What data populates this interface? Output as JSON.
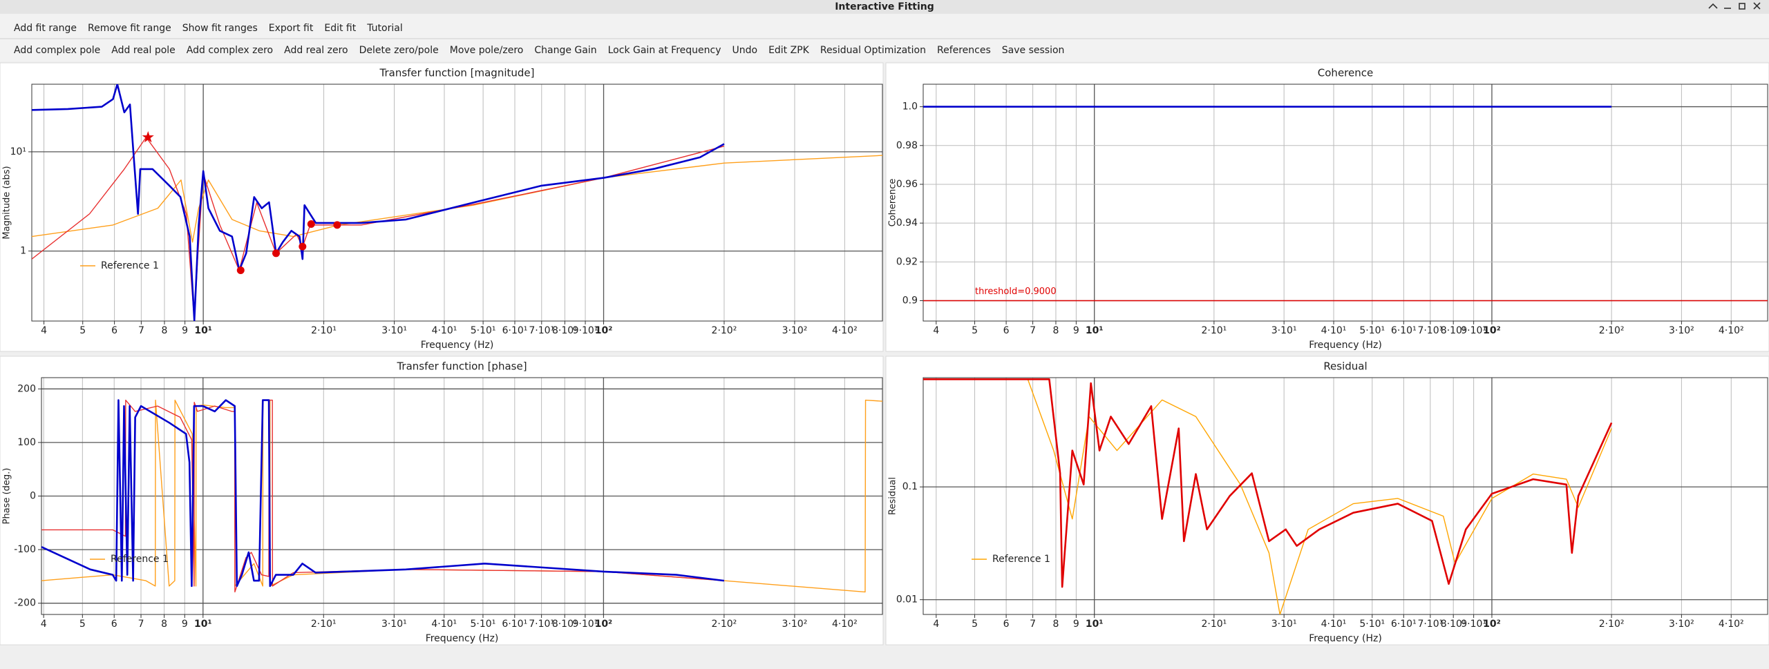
{
  "window": {
    "title": "Interactive Fitting"
  },
  "menu": [
    "Add fit range",
    "Remove fit range",
    "Show fit ranges",
    "Export fit",
    "Edit fit",
    "Tutorial"
  ],
  "toolbar": [
    "Add complex pole",
    "Add real pole",
    "Add complex zero",
    "Add real zero",
    "Delete zero/pole",
    "Move pole/zero",
    "Change Gain",
    "Lock Gain at Frequency",
    "Undo",
    "Edit ZPK",
    "Residual Optimization",
    "References",
    "Save session"
  ],
  "chart_data": [
    {
      "type": "line",
      "title": "Transfer function [magnitude]",
      "xlabel": "Frequency (Hz)",
      "ylabel": "Magnitude (abs)",
      "xscale": "log",
      "yscale": "log",
      "grid": true,
      "legend": "lower left",
      "xlim": [
        3.73,
        497
      ],
      "ylim": [
        0.197,
        48
      ],
      "xticks": [
        4,
        5,
        6,
        7,
        8,
        9,
        {
          "value": 10,
          "label": "10¹"
        },
        {
          "value": 20,
          "label": "2·10¹"
        },
        {
          "value": 30,
          "label": "3·10¹"
        },
        {
          "value": 40,
          "label": "4·10¹"
        },
        {
          "value": 50,
          "label": "5·10¹"
        },
        {
          "value": 60,
          "label": "6·10¹"
        },
        {
          "value": 70,
          "label": "7·10¹"
        },
        {
          "value": 80,
          "label": "8·10¹"
        },
        {
          "value": 90,
          "label": "9·10¹"
        },
        {
          "value": 100,
          "label": "10²"
        },
        {
          "value": 200,
          "label": "2·10²"
        },
        {
          "value": 300,
          "label": "3·10²"
        },
        {
          "value": 400,
          "label": "4·10²"
        }
      ],
      "yticks": [
        1,
        {
          "value": 10,
          "label": "10¹"
        }
      ],
      "series": [
        {
          "name": "Reference 1",
          "color": "#ff9f1a",
          "x": [
            3.73,
            5.95,
            7.7,
            8.8,
            9.4,
            9.74,
            10.3,
            11.8,
            13.8,
            16.8,
            21.8,
            47.3,
            100,
            200,
            497
          ],
          "values": [
            1.4,
            1.83,
            2.7,
            5.2,
            1.23,
            2.7,
            5.2,
            2.08,
            1.6,
            1.4,
            1.83,
            2.9,
            5.47,
            7.7,
            9.2
          ]
        },
        {
          "color": "#e83030",
          "x": [
            3.73,
            5.2,
            6.35,
            7.2,
            8.23,
            9.07,
            9.5,
            9.68,
            10,
            11,
            12.3,
            13.6,
            15.2,
            17.1,
            17.7,
            18.5,
            24.8,
            47.3,
            100,
            200
          ],
          "values": [
            0.83,
            2.37,
            6.7,
            14,
            6.7,
            2.37,
            0.2,
            0.83,
            6,
            1.83,
            0.64,
            3.08,
            0.95,
            1.48,
            1.1,
            1.83,
            1.83,
            2.95,
            5.47,
            11.4
          ]
        },
        {
          "color": "#0000cc",
          "x": [
            3.73,
            4.59,
            5.58,
            5.95,
            6.1,
            6.35,
            6.56,
            6.69,
            6.87,
            6.96,
            7.47,
            8.23,
            8.77,
            9.25,
            9.5,
            9.74,
            10,
            10.3,
            11,
            11.8,
            12.3,
            12.8,
            13.4,
            14,
            14.6,
            15.2,
            15.8,
            16.6,
            17.4,
            17.7,
            17.9,
            19.1,
            24.8,
            32.1,
            47.3,
            70,
            100,
            134,
            174,
            200
          ],
          "values": [
            26.4,
            27,
            28.5,
            34,
            48,
            25,
            30,
            10,
            2.37,
            6.7,
            6.7,
            4.56,
            3.51,
            1.4,
            0.2,
            1.83,
            6.4,
            2.7,
            1.6,
            1.4,
            0.64,
            0.95,
            3.5,
            2.7,
            3.1,
            0.95,
            1.23,
            1.6,
            1.4,
            0.83,
            2.9,
            1.92,
            1.92,
            2.08,
            3.08,
            4.56,
            5.47,
            6.75,
            8.8,
            12
          ]
        },
        {
          "color": "#e00000",
          "marker": "star",
          "x": [
            7.28
          ],
          "values": [
            14
          ]
        },
        {
          "color": "#e00000",
          "marker": "circle",
          "x": [
            12.4,
            15.2,
            17.7,
            18.6,
            21.6
          ],
          "values": [
            0.64,
            0.95,
            1.11,
            1.87,
            1.83
          ]
        }
      ]
    },
    {
      "type": "line",
      "title": "Coherence",
      "xlabel": "Frequency (Hz)",
      "ylabel": "Coherence",
      "xscale": "log",
      "yscale": "linear",
      "grid": true,
      "annotation": "threshold=0.9000",
      "xlim": [
        3.71,
        494
      ],
      "ylim": [
        0.8895,
        1.0116
      ],
      "xticks": [
        4,
        5,
        6,
        7,
        8,
        9,
        {
          "value": 10,
          "label": "10¹"
        },
        {
          "value": 20,
          "label": "2·10¹"
        },
        {
          "value": 30,
          "label": "3·10¹"
        },
        {
          "value": 40,
          "label": "4·10¹"
        },
        {
          "value": 50,
          "label": "5·10¹"
        },
        {
          "value": 60,
          "label": "6·10¹"
        },
        {
          "value": 70,
          "label": "7·10¹"
        },
        {
          "value": 80,
          "label": "8·10¹"
        },
        {
          "value": 90,
          "label": "9·10¹"
        },
        {
          "value": 100,
          "label": "10²"
        },
        {
          "value": 200,
          "label": "2·10²"
        },
        {
          "value": 300,
          "label": "3·10²"
        },
        {
          "value": 400,
          "label": "4·10²"
        }
      ],
      "yticks": [
        0.9,
        0.92,
        0.94,
        0.96,
        0.98,
        {
          "value": 1,
          "label": "1.0"
        }
      ],
      "series": [
        {
          "color": "#0000cc",
          "x": [
            3.71,
            200
          ],
          "values": [
            1,
            1
          ]
        },
        {
          "color": "#e00000",
          "x": [
            3.71,
            494
          ],
          "values": [
            0.9,
            0.9
          ]
        }
      ]
    },
    {
      "type": "line",
      "title": "Transfer function [phase]",
      "xlabel": "Frequency (Hz)",
      "ylabel": "Phase (deg.)",
      "xscale": "log",
      "yscale": "linear",
      "grid": true,
      "legend": "lower left",
      "xlim": [
        3.95,
        497
      ],
      "ylim": [
        -221,
        221
      ],
      "xticks": [
        4,
        5,
        6,
        7,
        8,
        9,
        {
          "value": 10,
          "label": "10¹"
        },
        {
          "value": 20,
          "label": "2·10¹"
        },
        {
          "value": 30,
          "label": "3·10¹"
        },
        {
          "value": 40,
          "label": "4·10¹"
        },
        {
          "value": 50,
          "label": "5·10¹"
        },
        {
          "value": 60,
          "label": "6·10¹"
        },
        {
          "value": 70,
          "label": "7·10¹"
        },
        {
          "value": 80,
          "label": "8·10¹"
        },
        {
          "value": 90,
          "label": "9·10¹"
        },
        {
          "value": 100,
          "label": "10²"
        },
        {
          "value": 200,
          "label": "2·10²"
        },
        {
          "value": 300,
          "label": "3·10²"
        },
        {
          "value": 400,
          "label": "4·10²"
        }
      ],
      "yticks": [
        -200,
        -100,
        0,
        100,
        200
      ],
      "series": [
        {
          "name": "Reference 1",
          "color": "#ff9f1a",
          "x": [
            3.95,
            5.95,
            7.2,
            7.6,
            7.61,
            8.23,
            8.5,
            8.51,
            9.4,
            9.6,
            9.61,
            10,
            11.4,
            12.0,
            12.01,
            13.4,
            14.1,
            14.11,
            14.7,
            14.71,
            16.8,
            32.1,
            100,
            200,
            450,
            451,
            497
          ],
          "values": [
            -158,
            -147,
            -158,
            -168,
            179,
            -168,
            -158,
            179,
            116,
            -168,
            168,
            170,
            165,
            165,
            -168,
            -126,
            -168,
            179,
            179,
            -168,
            -147,
            -137,
            -141,
            -158,
            -179,
            179,
            177
          ]
        },
        {
          "color": "#e83030",
          "x": [
            3.95,
            5.95,
            6.4,
            6.41,
            6.77,
            7.7,
            8.77,
            9.37,
            9.5,
            9.51,
            9.68,
            10.7,
            11.8,
            12.0,
            12.01,
            12.8,
            13.2,
            14.0,
            14.6,
            14.61,
            14.9,
            14.91,
            16.8,
            32.1,
            100,
            200
          ],
          "values": [
            -63,
            -63,
            -75,
            179,
            158,
            168,
            147,
            105,
            -168,
            175,
            158,
            168,
            158,
            158,
            -179,
            -115,
            -105,
            -147,
            -150,
            179,
            179,
            -168,
            -143,
            -137,
            -141,
            -158
          ]
        },
        {
          "color": "#0000cc",
          "x": [
            3.95,
            5.23,
            5.95,
            6.07,
            6.15,
            6.27,
            6.35,
            6.47,
            6.56,
            6.69,
            6.77,
            7.0,
            8.23,
            9.07,
            9.25,
            9.37,
            9.5,
            10,
            10.7,
            11.4,
            12.0,
            12.15,
            12.5,
            13.0,
            13.4,
            13.8,
            14.1,
            14.6,
            14.7,
            15.2,
            16.8,
            17.7,
            19.1,
            32.1,
            50.5,
            100,
            152,
            200
          ],
          "values": [
            -95,
            -137,
            -147,
            -158,
            179,
            -158,
            168,
            -147,
            168,
            -158,
            147,
            168,
            137,
            116,
            63,
            -168,
            168,
            168,
            158,
            179,
            168,
            -168,
            -147,
            -105,
            -158,
            -158,
            179,
            179,
            -168,
            -147,
            -147,
            -126,
            -143,
            -137,
            -126,
            -141,
            -147,
            -158
          ]
        }
      ]
    },
    {
      "type": "line",
      "title": "Residual",
      "ylabel": "Residual",
      "xlabel": "Frequency (Hz)",
      "xscale": "log",
      "yscale": "log",
      "grid": true,
      "legend": "lower left",
      "xlim": [
        3.71,
        494
      ],
      "ylim": [
        0.0074,
        0.93
      ],
      "xticks": [
        4,
        5,
        6,
        7,
        8,
        9,
        {
          "value": 10,
          "label": "10¹"
        },
        {
          "value": 20,
          "label": "2·10¹"
        },
        {
          "value": 30,
          "label": "3·10¹"
        },
        {
          "value": 40,
          "label": "4·10¹"
        },
        {
          "value": 50,
          "label": "5·10¹"
        },
        {
          "value": 60,
          "label": "6·10¹"
        },
        {
          "value": 70,
          "label": "7·10¹"
        },
        {
          "value": 80,
          "label": "8·10¹"
        },
        {
          "value": 90,
          "label": "9·10¹"
        },
        {
          "value": 100,
          "label": "10²"
        },
        {
          "value": 200,
          "label": "2·10²"
        },
        {
          "value": 300,
          "label": "3·10²"
        },
        {
          "value": 400,
          "label": "4·10²"
        }
      ],
      "yticks": [
        0.01,
        0.1
      ],
      "series": [
        {
          "name": "Reference 1",
          "color": "#ffa500",
          "x": [
            3.71,
            6.8,
            7.9,
            8.8,
            9.7,
            11.4,
            14.8,
            18,
            23.3,
            27.5,
            29.3,
            34.5,
            44.8,
            58,
            75.5,
            80.8,
            100,
            127,
            154,
            165,
            200
          ],
          "values": [
            0.9,
            0.9,
            0.21,
            0.052,
            0.42,
            0.21,
            0.59,
            0.42,
            0.105,
            0.026,
            0.0074,
            0.042,
            0.071,
            0.079,
            0.055,
            0.021,
            0.079,
            0.13,
            0.117,
            0.066,
            0.33
          ]
        },
        {
          "color": "#e00000",
          "x": [
            3.71,
            7.7,
            8.2,
            8.3,
            8.8,
            9.4,
            9.8,
            10.3,
            11,
            12.2,
            13.9,
            14.8,
            16.3,
            16.8,
            18,
            19.2,
            21.9,
            24.9,
            27.5,
            30.3,
            32.3,
            36.8,
            44.8,
            58,
            70.7,
            77.9,
            86,
            100,
            127,
            154,
            159,
            165,
            200
          ],
          "values": [
            0.9,
            0.9,
            0.132,
            0.013,
            0.21,
            0.105,
            0.83,
            0.21,
            0.42,
            0.24,
            0.52,
            0.052,
            0.33,
            0.033,
            0.13,
            0.042,
            0.083,
            0.132,
            0.033,
            0.042,
            0.03,
            0.042,
            0.059,
            0.071,
            0.05,
            0.0138,
            0.042,
            0.087,
            0.117,
            0.105,
            0.026,
            0.083,
            0.37
          ]
        }
      ]
    }
  ]
}
